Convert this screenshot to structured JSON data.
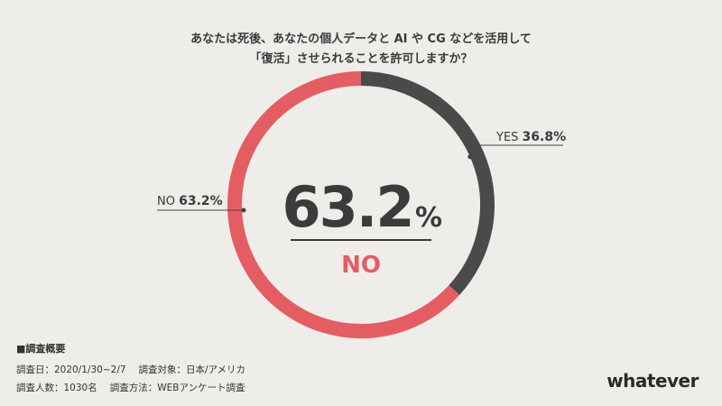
{
  "title": {
    "line1": "あなたは死後、あなたの個人データと AI や CG などを活用して",
    "line2": "「復活」させられることを許可しますか？"
  },
  "chart_data": {
    "type": "pie",
    "variant": "donut",
    "slices": [
      {
        "label": "YES",
        "value": 36.8,
        "color": "#4a4a4a",
        "display": "36.8%"
      },
      {
        "label": "NO",
        "value": 63.2,
        "color": "#e45d63",
        "display": "63.2%"
      }
    ],
    "center_value": "63.2",
    "center_unit": "%",
    "center_label": "NO"
  },
  "footer": {
    "heading": "■調査概要",
    "survey_date": "調査日：2020/1/30~2/7",
    "survey_target": "調査対象：日本/アメリカ",
    "respondents": "調査人数：1030名",
    "method": "調査方法：WEBアンケート調査"
  },
  "brand": "whatever"
}
